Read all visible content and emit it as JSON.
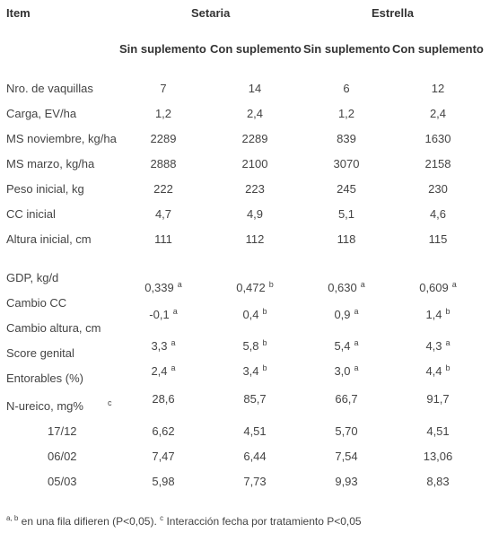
{
  "header": {
    "item": "Item",
    "group1": "Setaria",
    "group2": "Estrella",
    "sub": [
      "Sin suplemento",
      "Con suplemento",
      "Sin suplemento",
      "Con suplemento"
    ]
  },
  "rows1": [
    {
      "label": "Nro. de vaquillas",
      "values": [
        "7",
        "14",
        "6",
        "12"
      ]
    },
    {
      "label": "Carga, EV/ha",
      "values": [
        "1,2",
        "2,4",
        "1,2",
        "2,4"
      ]
    },
    {
      "label": "MS noviembre, kg/ha",
      "values": [
        "2289",
        "2289",
        "839",
        "1630"
      ]
    },
    {
      "label": "MS marzo, kg/ha",
      "values": [
        "2888",
        "2100",
        "3070",
        "2158"
      ]
    },
    {
      "label": "Peso inicial, kg",
      "values": [
        "222",
        "223",
        "245",
        "230"
      ]
    },
    {
      "label": "CC inicial",
      "values": [
        "4,7",
        "4,9",
        "5,1",
        "4,6"
      ]
    },
    {
      "label": "Altura inicial, cm",
      "values": [
        "111",
        "112",
        "118",
        "115"
      ]
    }
  ],
  "rows2": [
    {
      "label": "GDP, kg/d",
      "values": [
        "0,339",
        "0,472",
        "0,630",
        "0,609"
      ],
      "sups": [
        "a",
        "b",
        "a",
        "a"
      ]
    },
    {
      "label": "Cambio CC",
      "values": [
        "-0,1",
        "0,4",
        "0,9",
        "1,4"
      ],
      "sups": [
        "a",
        "a",
        "a",
        "b"
      ]
    },
    {
      "label": "Cambio altura, cm",
      "values": [
        "",
        "",
        "",
        ""
      ],
      "sups": [
        "",
        "",
        "",
        ""
      ]
    },
    {
      "label": "Score genital",
      "values": [
        "3,3",
        "5,8",
        "5,4",
        "4,3"
      ],
      "sups": [
        "a",
        "b",
        "a",
        "a"
      ]
    },
    {
      "label": "Entorables (%)",
      "values": [
        "2,4",
        "3,4",
        "3,0",
        "4,4"
      ],
      "sups": [
        "a",
        "b",
        "a",
        "b"
      ]
    },
    {
      "label": "N-ureico, mg%",
      "label_sup": "c",
      "values": [
        "28,6",
        "85,7",
        "66,7",
        "91,7"
      ]
    }
  ],
  "dates": [
    {
      "label": "17/12",
      "values": [
        "6,62",
        "4,51",
        "5,70",
        "4,51"
      ]
    },
    {
      "label": "06/02",
      "values": [
        "7,47",
        "6,44",
        "7,54",
        "13,06"
      ]
    },
    {
      "label": "05/03",
      "values": [
        "5,98",
        "7,73",
        "9,93",
        "8,83"
      ]
    }
  ],
  "footnote": {
    "sup1": "a, b",
    "text1": " en una fila difieren (P<0,05). ",
    "sup2": "c",
    "text2": " Interacción fecha por tratamiento P<0,05"
  }
}
